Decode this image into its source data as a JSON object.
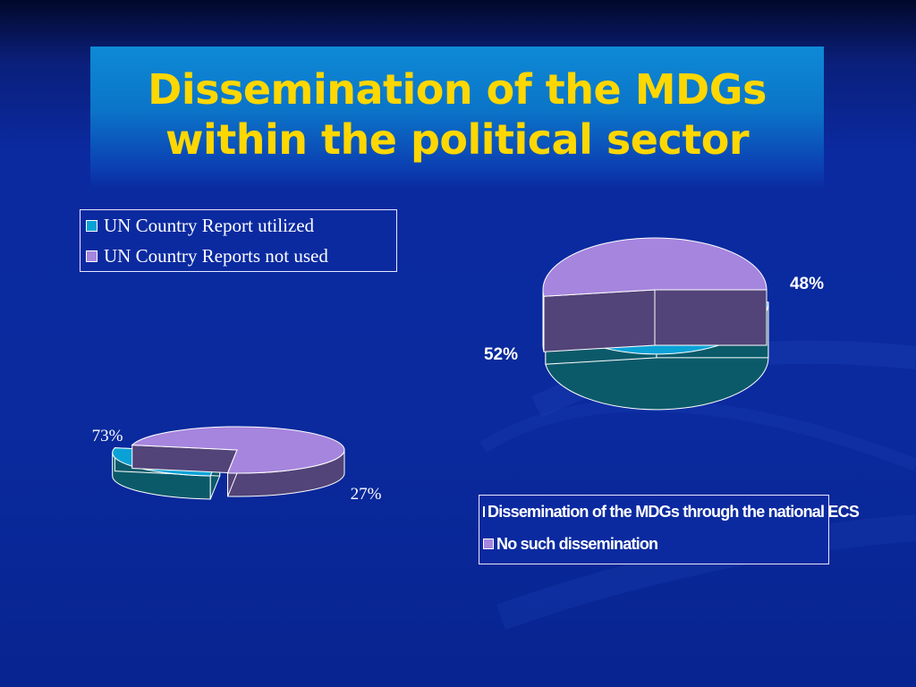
{
  "slide": {
    "title_line1": "Dissemination of the MDGs",
    "title_line2": "within the political sector"
  },
  "colors": {
    "teal_top": "#0aa2d6",
    "teal_side": "#0b5a6a",
    "purple_top": "#a685de",
    "purple_side": "#524478",
    "title_text": "#ffd700"
  },
  "chart_data": [
    {
      "type": "pie",
      "style": "3d-exploded",
      "categories": [
        "UN Country Report utilized",
        "UN Country Reports not used"
      ],
      "values": [
        27,
        73
      ],
      "data_labels": [
        "27%",
        "73%"
      ],
      "colors": [
        "#0aa2d6",
        "#a685de"
      ],
      "legend_position": "top-left"
    },
    {
      "type": "pie",
      "style": "3d-exploded",
      "categories": [
        "Dissemination of the MDGs through the national ECS",
        "No such dissemination"
      ],
      "values": [
        48,
        52
      ],
      "data_labels": [
        "48%",
        "52%"
      ],
      "colors": [
        "#0aa2d6",
        "#a685de"
      ],
      "legend_position": "bottom-right"
    }
  ]
}
